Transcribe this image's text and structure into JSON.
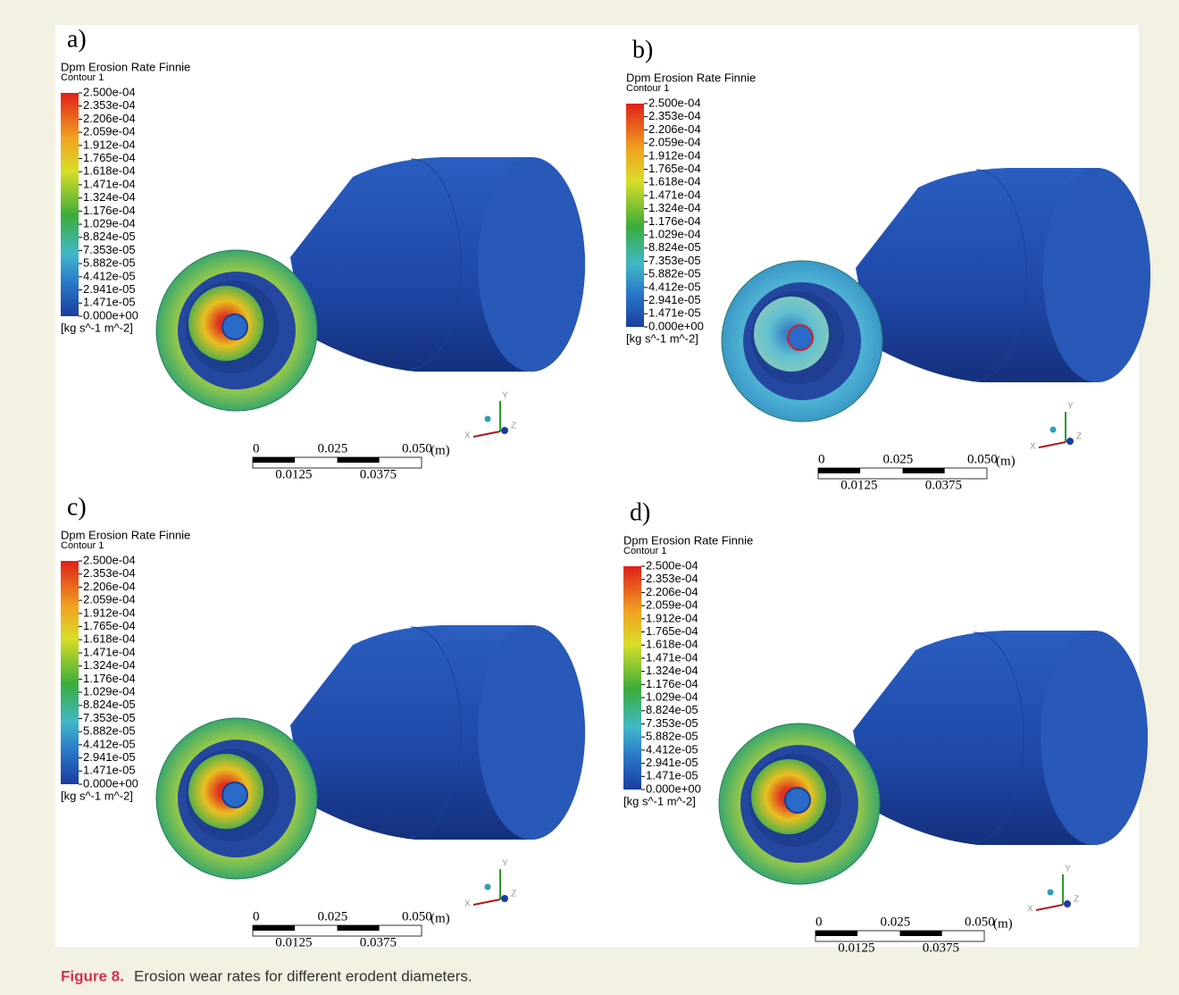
{
  "panels": [
    {
      "label": "a)",
      "legend": {
        "title": "Dpm Erosion Rate Finnie",
        "subtitle": "Contour 1",
        "ticks": [
          "2.500e-04",
          "2.353e-04",
          "2.206e-04",
          "2.059e-04",
          "1.912e-04",
          "1.765e-04",
          "1.618e-04",
          "1.471e-04",
          "1.324e-04",
          "1.176e-04",
          "1.029e-04",
          "8.824e-05",
          "7.353e-05",
          "5.882e-05",
          "4.412e-05",
          "2.941e-05",
          "1.471e-05",
          "0.000e+00"
        ],
        "unit": "[kg s^-1 m^-2]"
      },
      "scale": {
        "top": [
          "0",
          "0.025",
          "0.050"
        ],
        "unit": "(m)",
        "bottom": [
          "0.0125",
          "0.0375"
        ]
      },
      "axes": {
        "x": "X",
        "y": "Y",
        "z": "Z"
      }
    },
    {
      "label": "b)",
      "legend": {
        "title": "Dpm Erosion Rate Finnie",
        "subtitle": "Contour 1",
        "ticks": [
          "2.500e-04",
          "2.353e-04",
          "2.206e-04",
          "2.059e-04",
          "1.912e-04",
          "1.765e-04",
          "1.618e-04",
          "1.471e-04",
          "1.324e-04",
          "1.176e-04",
          "1.029e-04",
          "8.824e-05",
          "7.353e-05",
          "5.882e-05",
          "4.412e-05",
          "2.941e-05",
          "1.471e-05",
          "0.000e+00"
        ],
        "unit": "[kg s^-1 m^-2]"
      },
      "scale": {
        "top": [
          "0",
          "0.025",
          "0.050"
        ],
        "unit": "(m)",
        "bottom": [
          "0.0125",
          "0.0375"
        ]
      },
      "axes": {
        "x": "X",
        "y": "Y",
        "z": "Z"
      }
    },
    {
      "label": "c)",
      "legend": {
        "title": "Dpm Erosion Rate Finnie",
        "subtitle": "Contour 1",
        "ticks": [
          "2.500e-04",
          "2.353e-04",
          "2.206e-04",
          "2.059e-04",
          "1.912e-04",
          "1.765e-04",
          "1.618e-04",
          "1.471e-04",
          "1.324e-04",
          "1.176e-04",
          "1.029e-04",
          "8.824e-05",
          "7.353e-05",
          "5.882e-05",
          "4.412e-05",
          "2.941e-05",
          "1.471e-05",
          "0.000e+00"
        ],
        "unit": "[kg s^-1 m^-2]"
      },
      "scale": {
        "top": [
          "0",
          "0.025",
          "0.050"
        ],
        "unit": "(m)",
        "bottom": [
          "0.0125",
          "0.0375"
        ]
      },
      "axes": {
        "x": "X",
        "y": "Y",
        "z": "Z"
      }
    },
    {
      "label": "d)",
      "legend": {
        "title": "Dpm Erosion Rate Finnie",
        "subtitle": "Contour 1",
        "ticks": [
          "2.500e-04",
          "2.353e-04",
          "2.206e-04",
          "2.059e-04",
          "1.912e-04",
          "1.765e-04",
          "1.618e-04",
          "1.471e-04",
          "1.324e-04",
          "1.176e-04",
          "1.029e-04",
          "8.824e-05",
          "7.353e-05",
          "5.882e-05",
          "4.412e-05",
          "2.941e-05",
          "1.471e-05",
          "0.000e+00"
        ],
        "unit": "[kg s^-1 m^-2]"
      },
      "scale": {
        "top": [
          "0",
          "0.025",
          "0.050"
        ],
        "unit": "(m)",
        "bottom": [
          "0.0125",
          "0.0375"
        ]
      },
      "axes": {
        "x": "X",
        "y": "Y",
        "z": "Z"
      }
    }
  ],
  "caption": {
    "label": "Figure 8.",
    "text": "Erosion wear rates for different erodent diameters."
  }
}
